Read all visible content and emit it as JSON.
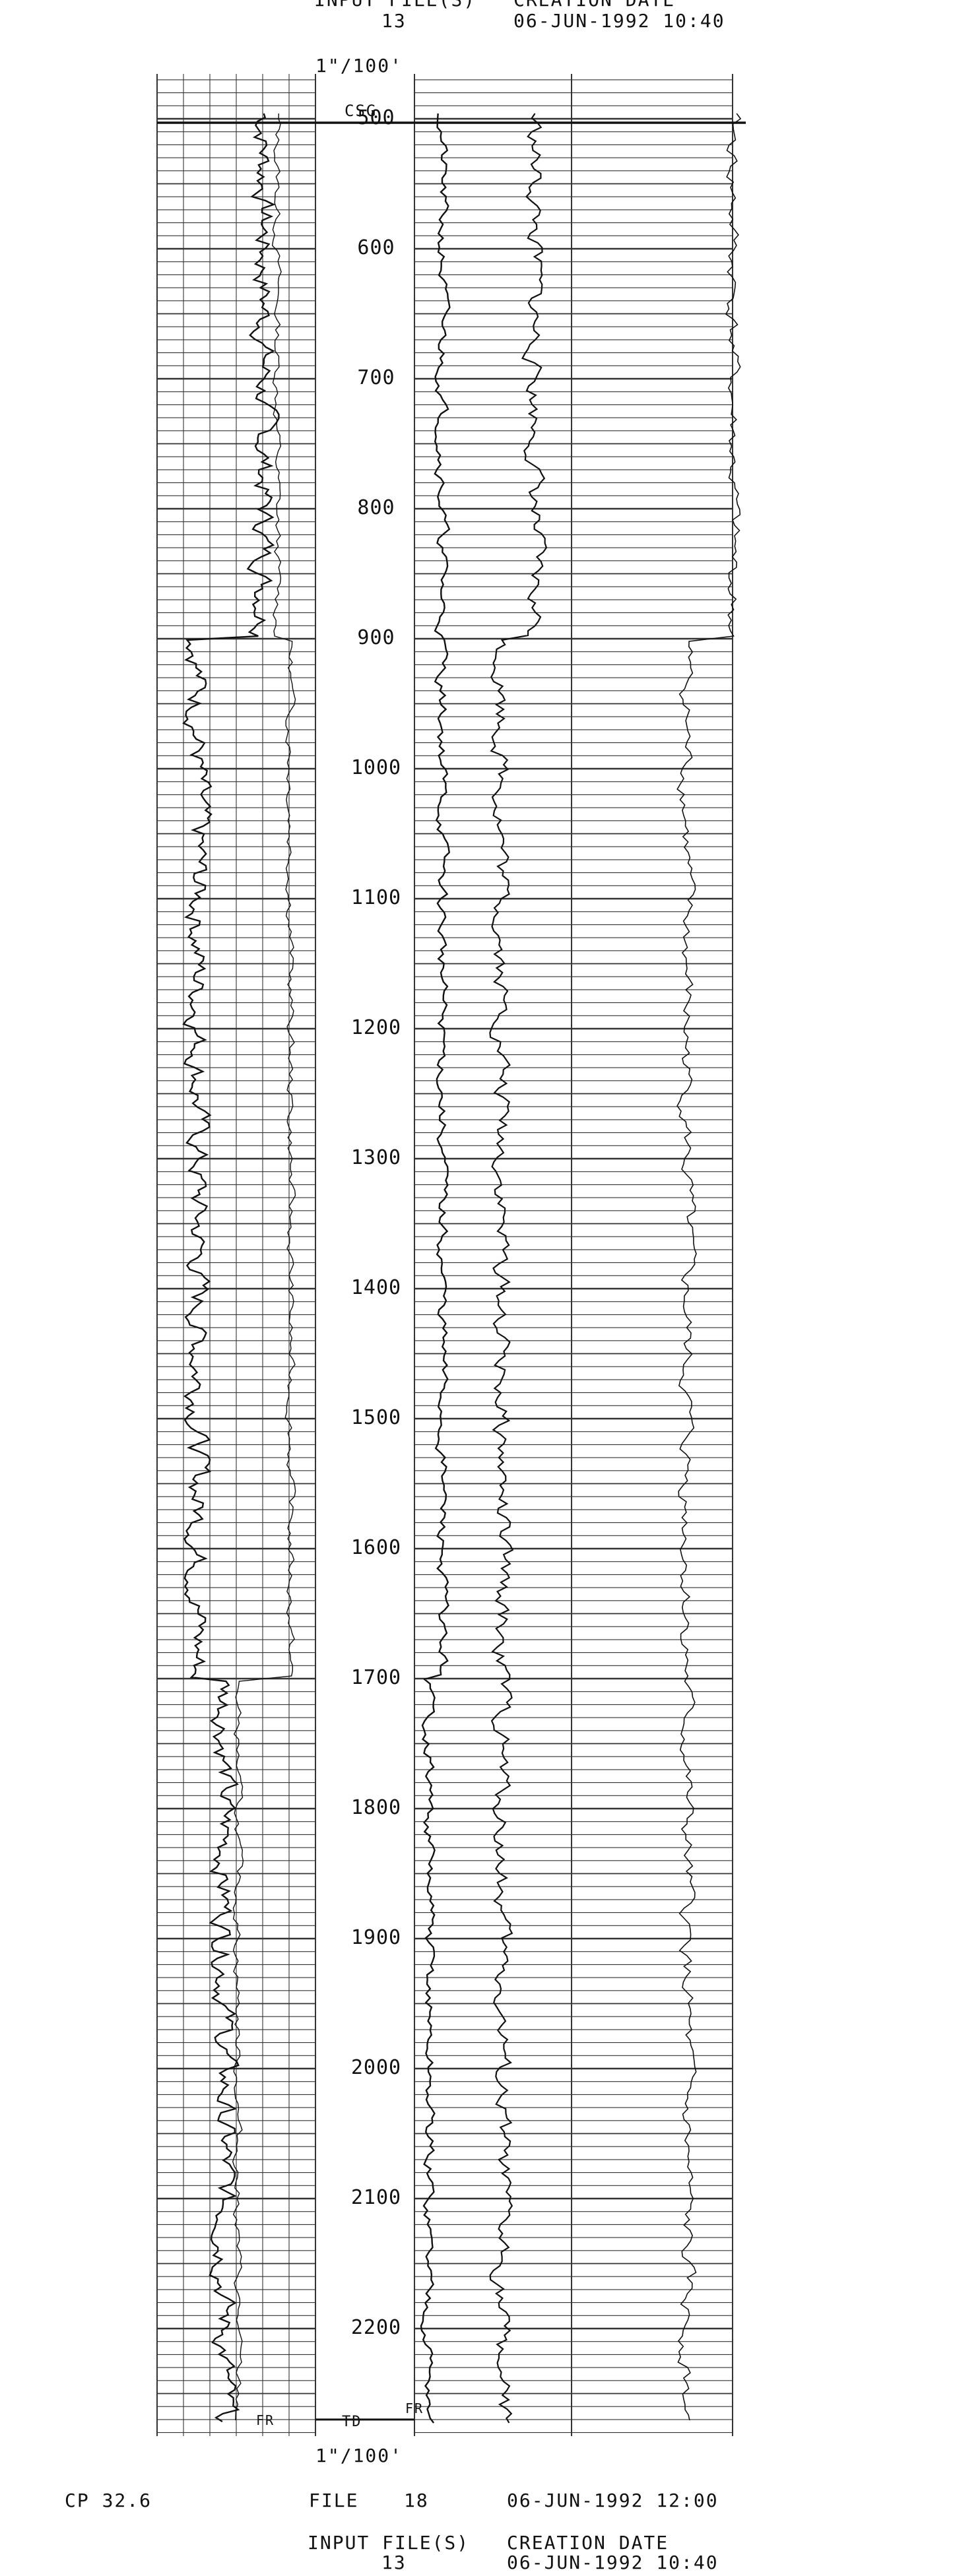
{
  "header": {
    "input_files_label": "INPUT FILE(S)",
    "input_files_value": "13",
    "creation_date_label": "CREATION DATE",
    "creation_date_value": "06-JUN-1992 10:40"
  },
  "scale": {
    "top": "1\"/100'",
    "bottom": "1\"/100'"
  },
  "track_labels": {
    "casing": "CSG",
    "total_depth": "TD",
    "track1_end": "FR",
    "track2_end": "FR"
  },
  "depth_ticks": [
    "500",
    "600",
    "700",
    "800",
    "900",
    "1000",
    "1100",
    "1200",
    "1300",
    "1400",
    "1500",
    "1600",
    "1700",
    "1800",
    "1900",
    "2000",
    "2100",
    "2200"
  ],
  "footer": {
    "cp": "CP 32.6",
    "file_label": "FILE",
    "file_number": "18",
    "print_date": "06-JUN-1992 12:00",
    "input_files_label": "INPUT FILE(S)",
    "input_files_value": "13",
    "creation_date_label": "CREATION DATE",
    "creation_date_value": "06-JUN-1992 10:40"
  },
  "colors": {
    "ink": "#111111",
    "grid": "#333333",
    "paper": "#ffffff"
  }
}
